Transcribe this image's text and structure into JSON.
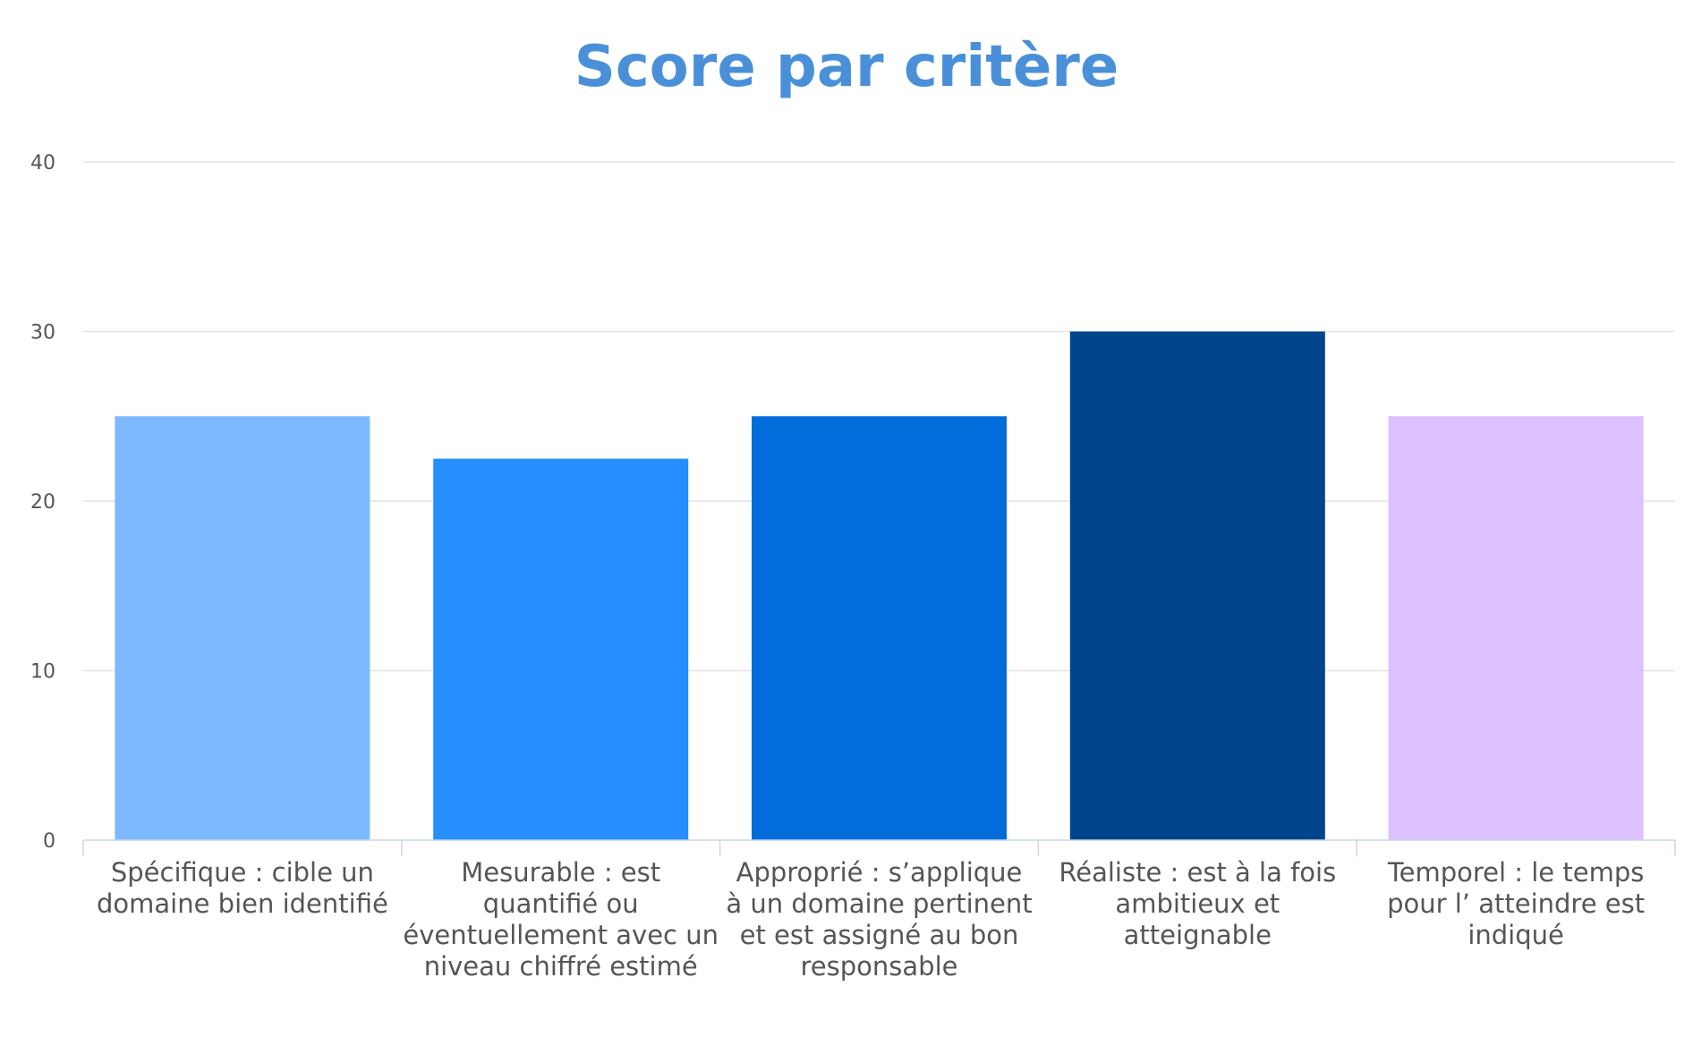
{
  "chart_data": {
    "type": "bar",
    "title": "Score par critère",
    "xlabel": "",
    "ylabel": "",
    "ylim": [
      0,
      40
    ],
    "yticks": [
      0,
      10,
      20,
      30,
      40
    ],
    "grid": true,
    "legend": "none",
    "categories": [
      [
        "Spécifique : cible un",
        "domaine bien identifié"
      ],
      [
        "Mesurable : est",
        "quantifié ou",
        "éventuellement avec un",
        "niveau chiffré estimé"
      ],
      [
        "Approprié : s’applique",
        "à un domaine pertinent",
        "et est assigné au bon",
        "responsable"
      ],
      [
        "Réaliste : est à la fois",
        "ambitieux et",
        "atteignable"
      ],
      [
        "Temporel : le temps",
        "pour l’ atteindre est",
        "indiqué"
      ]
    ],
    "values": [
      25,
      22.5,
      25,
      30,
      25
    ],
    "colors": [
      "#7cb9ff",
      "#268ffd",
      "#036cdb",
      "#00448b",
      "#dcc0ff"
    ]
  },
  "colors": {
    "title": "#4a90d9",
    "grid": "#e3e3e3",
    "axis": "#ccd6eb",
    "text": "#555555"
  }
}
